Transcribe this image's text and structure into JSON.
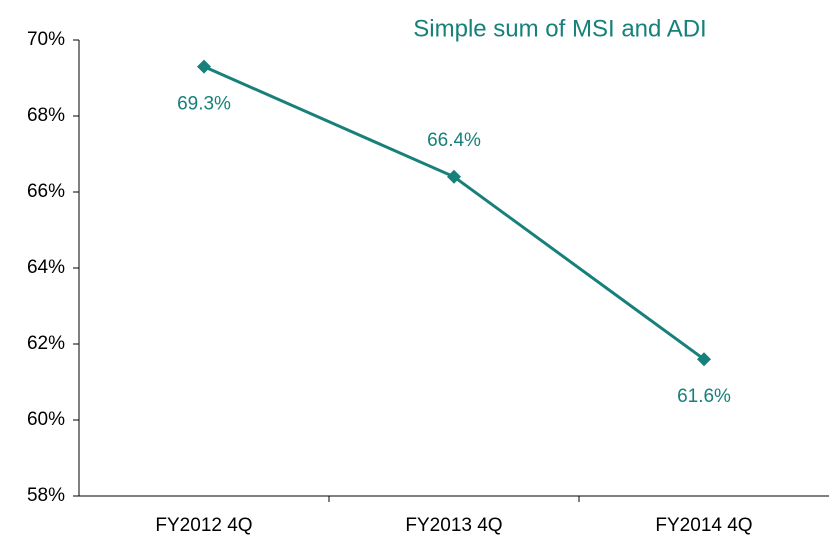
{
  "chart_data": {
    "type": "line",
    "title": "Simple sum of MSI and ADI",
    "categories": [
      "FY2012 4Q",
      "FY2013 4Q",
      "FY2014 4Q"
    ],
    "series": [
      {
        "name": null,
        "color": "#17807a",
        "values": [
          69.3,
          66.4,
          61.6
        ],
        "value_labels": [
          "69.3%",
          "66.4%",
          "61.6%"
        ]
      }
    ],
    "ylim": [
      58,
      70
    ],
    "yticks": [
      {
        "value": 58,
        "label": "58%"
      },
      {
        "value": 60,
        "label": "60%"
      },
      {
        "value": 62,
        "label": "62%"
      },
      {
        "value": 64,
        "label": "64%"
      },
      {
        "value": 66,
        "label": "66%"
      },
      {
        "value": 68,
        "label": "68%"
      },
      {
        "value": 70,
        "label": "70%"
      }
    ],
    "grid": false
  }
}
